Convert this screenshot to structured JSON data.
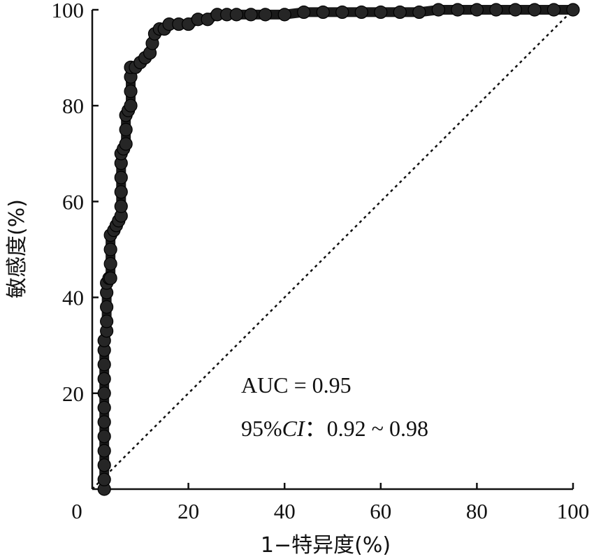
{
  "chart_data": {
    "type": "line",
    "title": "",
    "xlabel": "1−特异度(%)",
    "ylabel": "敏感度(%)",
    "xlim": [
      0,
      100
    ],
    "ylim": [
      0,
      100
    ],
    "xticks": [
      "0",
      "20",
      "40",
      "60",
      "80",
      "100"
    ],
    "yticks": [
      "20",
      "40",
      "60",
      "80",
      "100"
    ],
    "grid": false,
    "legend": "none",
    "series": [
      {
        "marker": "filled-circle",
        "color": "#1a1a1a",
        "points": [
          [
            2.5,
            0
          ],
          [
            2.5,
            2
          ],
          [
            2.5,
            5
          ],
          [
            2.5,
            8
          ],
          [
            2.5,
            11
          ],
          [
            2.5,
            14
          ],
          [
            2.5,
            17
          ],
          [
            2.5,
            20
          ],
          [
            2.5,
            23
          ],
          [
            2.5,
            26
          ],
          [
            2.5,
            29
          ],
          [
            2.5,
            31
          ],
          [
            3.0,
            33
          ],
          [
            3.0,
            35
          ],
          [
            3.0,
            38
          ],
          [
            3.0,
            41
          ],
          [
            3.0,
            43
          ],
          [
            3.5,
            44
          ],
          [
            3.8,
            44
          ],
          [
            3.8,
            47
          ],
          [
            3.8,
            50
          ],
          [
            3.8,
            53
          ],
          [
            4.5,
            54
          ],
          [
            5.0,
            55
          ],
          [
            5.5,
            56
          ],
          [
            6.0,
            57
          ],
          [
            6.0,
            59
          ],
          [
            6.0,
            62
          ],
          [
            6.0,
            65
          ],
          [
            6.0,
            68
          ],
          [
            6.0,
            70
          ],
          [
            6.5,
            71
          ],
          [
            7.0,
            72
          ],
          [
            7.0,
            75
          ],
          [
            7.0,
            78
          ],
          [
            7.5,
            79
          ],
          [
            8.0,
            80
          ],
          [
            8.0,
            83
          ],
          [
            8.0,
            86
          ],
          [
            8.0,
            88
          ],
          [
            9.0,
            88
          ],
          [
            10.0,
            89
          ],
          [
            11.0,
            90
          ],
          [
            12.0,
            91
          ],
          [
            12.5,
            93
          ],
          [
            13.0,
            95
          ],
          [
            14.0,
            96
          ],
          [
            15.0,
            96
          ],
          [
            16.0,
            97
          ],
          [
            18.0,
            97
          ],
          [
            20.0,
            97
          ],
          [
            22.0,
            98
          ],
          [
            24.0,
            98
          ],
          [
            26.0,
            99
          ],
          [
            28.0,
            99
          ],
          [
            30.0,
            99
          ],
          [
            33.0,
            99
          ],
          [
            36.0,
            99
          ],
          [
            40.0,
            99
          ],
          [
            44.0,
            99.5
          ],
          [
            48.0,
            99.5
          ],
          [
            52.0,
            99.5
          ],
          [
            56.0,
            99.5
          ],
          [
            60.0,
            99.5
          ],
          [
            64.0,
            99.5
          ],
          [
            68.0,
            99.5
          ],
          [
            72.0,
            100
          ],
          [
            76.0,
            100
          ],
          [
            80.0,
            100
          ],
          [
            84.0,
            100
          ],
          [
            88.0,
            100
          ],
          [
            92.0,
            100
          ],
          [
            96.0,
            100
          ],
          [
            100.0,
            100
          ]
        ]
      }
    ],
    "reference_line": {
      "style": "dotted",
      "from": [
        0,
        0
      ],
      "to": [
        100,
        100
      ]
    },
    "annotations": {
      "auc": "AUC = 0.95",
      "ci_prefix": "95%",
      "ci_italic": "CI",
      "ci_suffix": "：0.92 ~ 0.98"
    }
  }
}
